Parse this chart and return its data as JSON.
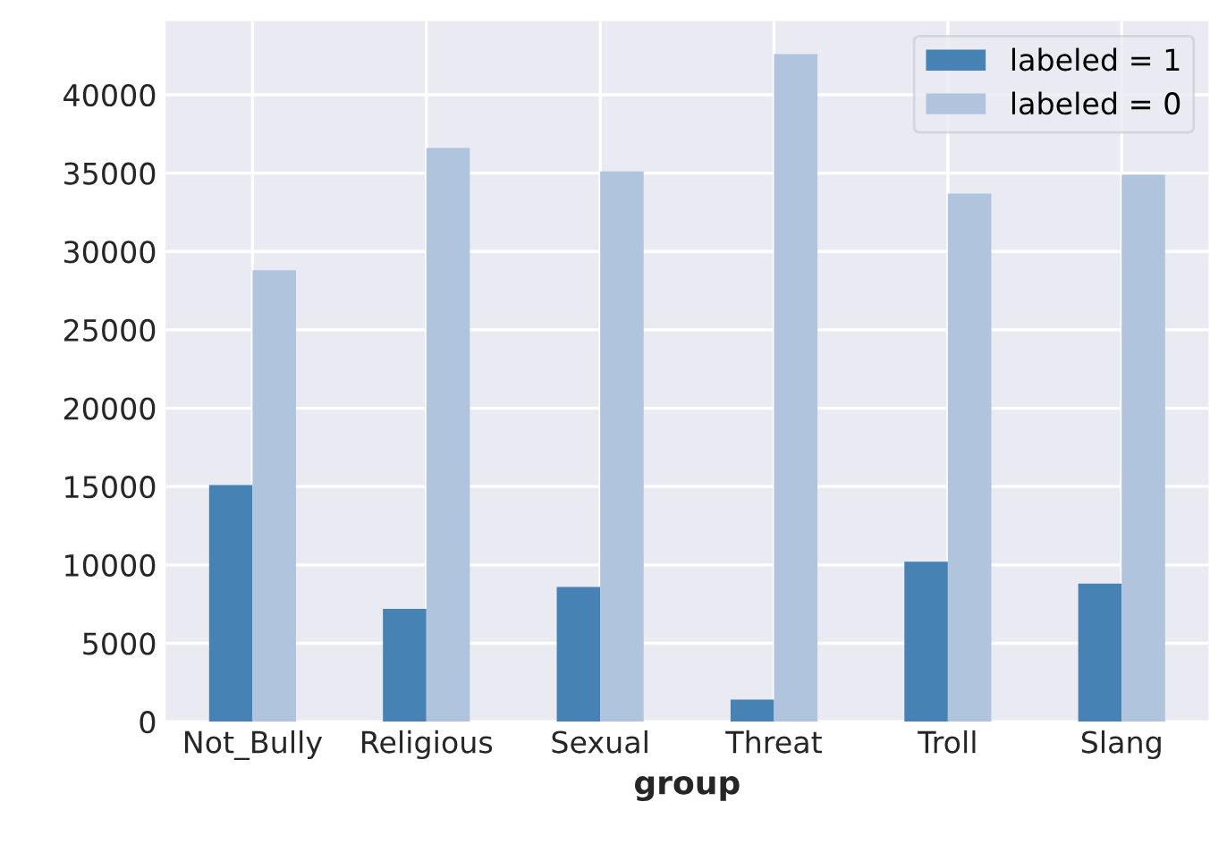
{
  "chart_data": {
    "type": "bar",
    "xlabel": "group",
    "categories": [
      "Not_Bully",
      "Religious",
      "Sexual",
      "Threat",
      "Troll",
      "Slang"
    ],
    "series": [
      {
        "name": "labeled = 1",
        "color": "#4682b4",
        "values": [
          15100,
          7200,
          8600,
          1400,
          10200,
          8800
        ]
      },
      {
        "name": "labeled = 0",
        "color": "#b0c4de",
        "values": [
          28800,
          36600,
          35100,
          42600,
          33700,
          34900
        ]
      }
    ],
    "ylim": [
      0,
      44700
    ],
    "yticks": [
      0,
      5000,
      10000,
      15000,
      20000,
      25000,
      30000,
      35000,
      40000
    ],
    "grid": true,
    "legend": "top right"
  }
}
